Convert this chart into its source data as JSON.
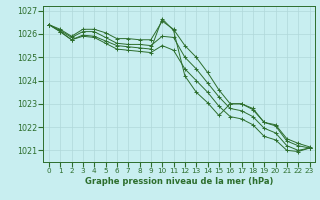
{
  "title": "Graphe pression niveau de la mer (hPa)",
  "x_labels": [
    "0",
    "1",
    "2",
    "3",
    "4",
    "5",
    "6",
    "7",
    "8",
    "9",
    "10",
    "11",
    "12",
    "13",
    "14",
    "15",
    "16",
    "17",
    "18",
    "19",
    "20",
    "21",
    "22",
    "23"
  ],
  "xlim": [
    -0.5,
    23.5
  ],
  "ylim": [
    1020.5,
    1027.2
  ],
  "yticks": [
    1021,
    1022,
    1023,
    1024,
    1025,
    1026,
    1027
  ],
  "background_color": "#c8eef0",
  "grid_color": "#b0d8da",
  "line_color": "#2d6e2d",
  "line1": [
    1026.4,
    1026.2,
    1025.9,
    1026.2,
    1026.2,
    1026.05,
    1025.8,
    1025.8,
    1025.75,
    1025.75,
    1026.55,
    1026.2,
    1025.5,
    1025.0,
    1024.35,
    1023.6,
    1023.0,
    1023.0,
    1022.75,
    1022.2,
    1022.05,
    1021.4,
    1021.2,
    1021.1
  ],
  "line2": [
    1026.4,
    1026.15,
    1025.85,
    1026.1,
    1026.1,
    1025.85,
    1025.6,
    1025.55,
    1025.55,
    1025.5,
    1025.9,
    1025.85,
    1025.0,
    1024.5,
    1023.9,
    1023.3,
    1022.8,
    1022.7,
    1022.45,
    1021.95,
    1021.75,
    1021.2,
    1021.0,
    1021.1
  ],
  "line3": [
    1026.4,
    1026.1,
    1025.75,
    1025.9,
    1025.85,
    1025.6,
    1025.35,
    1025.3,
    1025.25,
    1025.2,
    1025.5,
    1025.3,
    1024.5,
    1024.0,
    1023.5,
    1022.9,
    1022.45,
    1022.35,
    1022.1,
    1021.6,
    1021.45,
    1021.0,
    1020.95,
    1021.1
  ],
  "line4": [
    1026.4,
    1026.1,
    1025.75,
    1025.95,
    1025.9,
    1025.7,
    1025.5,
    1025.45,
    1025.4,
    1025.35,
    1026.65,
    1026.15,
    1024.2,
    1023.5,
    1023.05,
    1022.5,
    1023.0,
    1023.0,
    1022.8,
    1022.2,
    1022.1,
    1021.5,
    1021.3,
    1021.15
  ],
  "figsize": [
    3.2,
    2.0
  ],
  "dpi": 100
}
